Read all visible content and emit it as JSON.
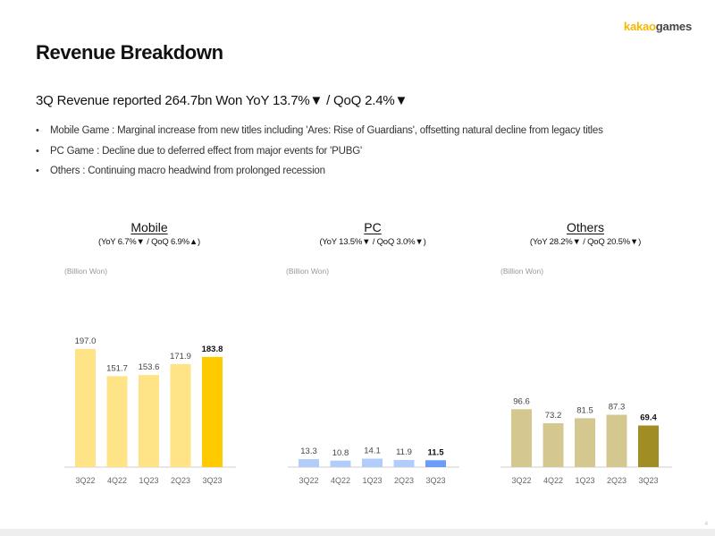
{
  "header": {
    "logo_part1": "kakao",
    "logo_part2": "games"
  },
  "title": "Revenue Breakdown",
  "subtitle": "3Q Revenue reported 264.7bn Won YoY 13.7%▼ / QoQ 2.4%▼",
  "bullets": [
    "Mobile Game : Marginal increase from new titles including 'Ares: Rise of Guardians', offsetting natural decline from legacy titles",
    "PC Game : Decline due to deferred effect from major events for 'PUBG'",
    "Others : Continuing macro headwind from prolonged recession"
  ],
  "bullet_glyph": "•",
  "page_number": "4",
  "chart_data": [
    {
      "type": "bar",
      "title": "Mobile",
      "subtitle": "(YoY 6.7%▼ / QoQ 6.9%▲)",
      "unit": "(Billion Won)",
      "categories": [
        "3Q22",
        "4Q22",
        "1Q23",
        "2Q23",
        "3Q23"
      ],
      "values": [
        197.0,
        151.7,
        153.6,
        171.9,
        183.8
      ],
      "value_labels": [
        "197.0",
        "151.7",
        "153.6",
        "171.9",
        "183.8"
      ],
      "ylim": [
        0,
        197.0
      ],
      "grid": false,
      "colors": [
        "#ffe387",
        "#ffe387",
        "#ffe387",
        "#ffe387",
        "#ffcb00"
      ]
    },
    {
      "type": "bar",
      "title": "PC",
      "subtitle": "(YoY 13.5%▼ / QoQ 3.0%▼)",
      "unit": "(Billion Won)",
      "categories": [
        "3Q22",
        "4Q22",
        "1Q23",
        "2Q23",
        "3Q23"
      ],
      "values": [
        13.3,
        10.8,
        14.1,
        11.9,
        11.5
      ],
      "value_labels": [
        "13.3",
        "10.8",
        "14.1",
        "11.9",
        "11.5"
      ],
      "ylim": [
        0,
        197.0
      ],
      "grid": false,
      "colors": [
        "#b3cdfb",
        "#b3cdfb",
        "#b3cdfb",
        "#b3cdfb",
        "#6b9cf6"
      ]
    },
    {
      "type": "bar",
      "title": "Others",
      "subtitle": "(YoY 28.2%▼ / QoQ 20.5%▼)",
      "unit": "(Billion Won)",
      "categories": [
        "3Q22",
        "4Q22",
        "1Q23",
        "2Q23",
        "3Q23"
      ],
      "values": [
        96.6,
        73.2,
        81.5,
        87.3,
        69.4
      ],
      "value_labels": [
        "96.6",
        "73.2",
        "81.5",
        "87.3",
        "69.4"
      ],
      "ylim": [
        0,
        197.0
      ],
      "grid": false,
      "colors": [
        "#d4c890",
        "#d4c890",
        "#d4c890",
        "#d4c890",
        "#a08e24"
      ]
    }
  ]
}
